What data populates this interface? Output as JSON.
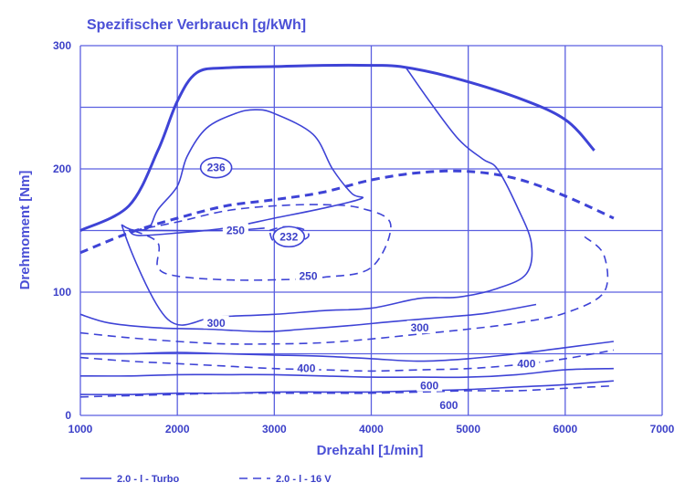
{
  "chart_data": {
    "type": "line",
    "title": "Spezifischer Verbrauch [g/kWh]",
    "xlabel": "Drehzahl [1/min]",
    "ylabel": "Drehmoment [Nm]",
    "xlim": [
      1000,
      7000
    ],
    "ylim": [
      0,
      300
    ],
    "x_ticks": [
      "1000",
      "2000",
      "3000",
      "4000",
      "5000",
      "6000",
      "7000"
    ],
    "y_ticks": [
      "0",
      "100",
      "200",
      "300"
    ],
    "grid": true,
    "legend_position": "bottom-left",
    "legend": [
      "2.0 - l - Turbo",
      "2.0 - l - 16 V"
    ],
    "series": [
      {
        "name": "2.0 - l - Turbo",
        "style": "solid",
        "role": "full-load",
        "points": [
          [
            1000,
            150
          ],
          [
            1500,
            170
          ],
          [
            1800,
            215
          ],
          [
            2000,
            255
          ],
          [
            2200,
            278
          ],
          [
            2500,
            282
          ],
          [
            3000,
            283
          ],
          [
            3500,
            284
          ],
          [
            4000,
            284
          ],
          [
            4300,
            283
          ],
          [
            4800,
            275
          ],
          [
            5500,
            258
          ],
          [
            6000,
            240
          ],
          [
            6300,
            215
          ]
        ]
      },
      {
        "name": "2.0 - l - 16 V",
        "style": "dashed",
        "role": "full-load",
        "points": [
          [
            1000,
            132
          ],
          [
            1500,
            148
          ],
          [
            2000,
            160
          ],
          [
            2500,
            170
          ],
          [
            3000,
            175
          ],
          [
            3500,
            181
          ],
          [
            4000,
            191
          ],
          [
            4500,
            197
          ],
          [
            5000,
            198
          ],
          [
            5500,
            192
          ],
          [
            6000,
            178
          ],
          [
            6500,
            160
          ]
        ]
      }
    ],
    "isolines": [
      {
        "series": "2.0 - l - Turbo",
        "style": "solid",
        "label": "236",
        "closed": true,
        "points": [
          [
            1500,
            150
          ],
          [
            1700,
            152
          ],
          [
            1800,
            167
          ],
          [
            2000,
            186
          ],
          [
            2100,
            210
          ],
          [
            2300,
            233
          ],
          [
            2600,
            245
          ],
          [
            2800,
            248
          ],
          [
            3000,
            245
          ],
          [
            3400,
            228
          ],
          [
            3600,
            200
          ],
          [
            3800,
            180
          ],
          [
            3900,
            176
          ],
          [
            3500,
            168
          ],
          [
            3000,
            160
          ],
          [
            2500,
            152
          ],
          [
            2000,
            148
          ],
          [
            1600,
            146
          ],
          [
            1500,
            150
          ]
        ]
      },
      {
        "series": "2.0 - l - Turbo",
        "style": "solid",
        "label": "",
        "closed": false,
        "points": [
          [
            4350,
            283
          ],
          [
            4600,
            255
          ],
          [
            4900,
            224
          ],
          [
            5150,
            208
          ],
          [
            5300,
            200
          ],
          [
            5500,
            170
          ],
          [
            5650,
            140
          ],
          [
            5600,
            115
          ],
          [
            5300,
            103
          ],
          [
            4900,
            96
          ],
          [
            4500,
            95
          ],
          [
            4000,
            87
          ],
          [
            3500,
            85
          ],
          [
            3000,
            82
          ],
          [
            2400,
            80
          ],
          [
            1900,
            78
          ],
          [
            1450,
            149
          ],
          [
            1600,
            150
          ],
          [
            2500,
            150
          ],
          [
            2900,
            152
          ]
        ]
      },
      {
        "series": "2.0 - l - Turbo",
        "style": "solid",
        "label": "300",
        "closed": false,
        "points": [
          [
            1000,
            82
          ],
          [
            1300,
            75
          ],
          [
            1800,
            71
          ],
          [
            2300,
            70
          ],
          [
            2900,
            68
          ],
          [
            3300,
            70
          ],
          [
            3800,
            73
          ],
          [
            4200,
            76
          ],
          [
            4800,
            80
          ],
          [
            5200,
            83
          ],
          [
            5700,
            90
          ]
        ]
      },
      {
        "series": "2.0 - l - Turbo",
        "style": "solid",
        "label": "400",
        "closed": false,
        "points": [
          [
            1000,
            50
          ],
          [
            1500,
            50
          ],
          [
            2000,
            51
          ],
          [
            2500,
            50
          ],
          [
            3000,
            49
          ],
          [
            3500,
            48
          ],
          [
            4000,
            46
          ],
          [
            4500,
            44
          ],
          [
            5000,
            46
          ],
          [
            5500,
            50
          ],
          [
            6000,
            55
          ],
          [
            6500,
            60
          ]
        ]
      },
      {
        "series": "2.0 - l - Turbo",
        "style": "solid",
        "label": "600",
        "closed": false,
        "points": [
          [
            1000,
            32
          ],
          [
            1500,
            32
          ],
          [
            2000,
            33
          ],
          [
            2500,
            33
          ],
          [
            3000,
            33
          ],
          [
            3500,
            32
          ],
          [
            4000,
            31
          ],
          [
            4500,
            31
          ],
          [
            5000,
            31
          ],
          [
            5500,
            33
          ],
          [
            6000,
            37
          ],
          [
            6500,
            38
          ]
        ]
      },
      {
        "series": "2.0 - l - Turbo",
        "style": "solid",
        "label": "",
        "closed": false,
        "points": [
          [
            1000,
            17
          ],
          [
            1500,
            17
          ],
          [
            2000,
            18
          ],
          [
            2500,
            18
          ],
          [
            3000,
            19
          ],
          [
            3500,
            19
          ],
          [
            4000,
            19
          ],
          [
            4500,
            20
          ],
          [
            5000,
            21
          ],
          [
            5500,
            23
          ],
          [
            6000,
            25
          ],
          [
            6500,
            28
          ]
        ]
      },
      {
        "series": "2.0 - l - 16 V",
        "style": "dashed",
        "label": "250",
        "closed": true,
        "points": [
          [
            1550,
            150
          ],
          [
            2000,
            157
          ],
          [
            2500,
            166
          ],
          [
            3000,
            170
          ],
          [
            3500,
            171
          ],
          [
            3900,
            168
          ],
          [
            4200,
            155
          ],
          [
            4000,
            120
          ],
          [
            3500,
            112
          ],
          [
            3000,
            110
          ],
          [
            2500,
            110
          ],
          [
            2000,
            113
          ],
          [
            1800,
            120
          ],
          [
            1800,
            140
          ],
          [
            1550,
            150
          ]
        ]
      },
      {
        "series": "2.0 - l - 16 V",
        "style": "dashed",
        "label": "232",
        "closed": true,
        "points": [
          [
            2950,
            150
          ],
          [
            3100,
            153
          ],
          [
            3300,
            151
          ],
          [
            3350,
            145
          ],
          [
            3200,
            140
          ],
          [
            3000,
            141
          ],
          [
            2950,
            150
          ]
        ]
      },
      {
        "series": "2.0 - l - 16 V",
        "style": "dashed",
        "label": "300",
        "closed": false,
        "points": [
          [
            1000,
            67
          ],
          [
            1500,
            63
          ],
          [
            2000,
            60
          ],
          [
            2500,
            58
          ],
          [
            3000,
            58
          ],
          [
            3500,
            59
          ],
          [
            4000,
            62
          ],
          [
            4500,
            66
          ],
          [
            5000,
            70
          ],
          [
            5500,
            75
          ],
          [
            6000,
            83
          ],
          [
            6400,
            100
          ],
          [
            6400,
            130
          ],
          [
            6200,
            145
          ]
        ]
      },
      {
        "series": "2.0 - l - 16 V",
        "style": "dashed",
        "label": "400",
        "closed": false,
        "points": [
          [
            1000,
            47
          ],
          [
            1500,
            44
          ],
          [
            2000,
            42
          ],
          [
            2500,
            40
          ],
          [
            3000,
            38
          ],
          [
            3500,
            37
          ],
          [
            4000,
            36
          ],
          [
            4500,
            37
          ],
          [
            5000,
            38
          ],
          [
            5500,
            41
          ],
          [
            6000,
            46
          ],
          [
            6500,
            53
          ]
        ]
      },
      {
        "series": "2.0 - l - 16 V",
        "style": "dashed",
        "label": "600",
        "closed": false,
        "points": [
          [
            1000,
            15
          ],
          [
            1500,
            16
          ],
          [
            2000,
            17
          ],
          [
            2500,
            18
          ],
          [
            3000,
            18
          ],
          [
            3500,
            18
          ],
          [
            4000,
            18
          ],
          [
            4500,
            19
          ],
          [
            5000,
            20
          ],
          [
            5500,
            20
          ],
          [
            6000,
            22
          ],
          [
            6500,
            24
          ]
        ]
      }
    ],
    "labels": [
      {
        "text": "236",
        "x": 2400,
        "y": 201,
        "circled": true
      },
      {
        "text": "250",
        "x": 2600,
        "y": 150
      },
      {
        "text": "232",
        "x": 3150,
        "y": 145,
        "circled": true
      },
      {
        "text": "250",
        "x": 3350,
        "y": 113
      },
      {
        "text": "300",
        "x": 2400,
        "y": 75
      },
      {
        "text": "300",
        "x": 4500,
        "y": 71
      },
      {
        "text": "400",
        "x": 3330,
        "y": 38
      },
      {
        "text": "400",
        "x": 5600,
        "y": 42
      },
      {
        "text": "600",
        "x": 4600,
        "y": 24
      },
      {
        "text": "600",
        "x": 4800,
        "y": 8
      }
    ]
  }
}
